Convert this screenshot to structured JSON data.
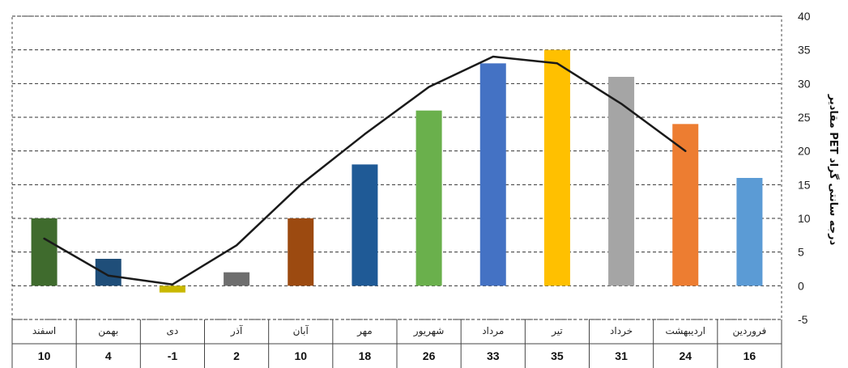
{
  "chart_data": {
    "type": "bar",
    "categories": [
      "اسفند",
      "بهمن",
      "دی",
      "آذر",
      "آبان",
      "مهر",
      "شهریور",
      "مرداد",
      "تیر",
      "خرداد",
      "اردیبهشت",
      "فروردین"
    ],
    "values": [
      10,
      4,
      -1,
      2,
      10,
      18,
      26,
      33,
      35,
      31,
      24,
      16
    ],
    "table_values": [
      "10",
      "4",
      "-1",
      "2",
      "10",
      "18",
      "26",
      "33",
      "35",
      "31",
      "24",
      "16"
    ],
    "bar_colors": [
      "#3f6b2d",
      "#1f4e79",
      "#c9b800",
      "#6e6e6e",
      "#9c4a10",
      "#1f5a96",
      "#6ab04c",
      "#4472c4",
      "#ffc000",
      "#a5a5a5",
      "#ed7d31",
      "#5b9bd5"
    ],
    "line_values": [
      7,
      1.5,
      0.2,
      6,
      15,
      22.5,
      29.5,
      34,
      33,
      27,
      20
    ],
    "line_color": "#1a1a1a",
    "ylabel": "مقادیر PET درجه سانتی گراد",
    "ylim": [
      -5,
      40
    ],
    "yticks": [
      "40",
      "35",
      "30",
      "25",
      "20",
      "15",
      "10",
      "5",
      "0",
      "-5"
    ],
    "grid": true,
    "legend": "none"
  }
}
